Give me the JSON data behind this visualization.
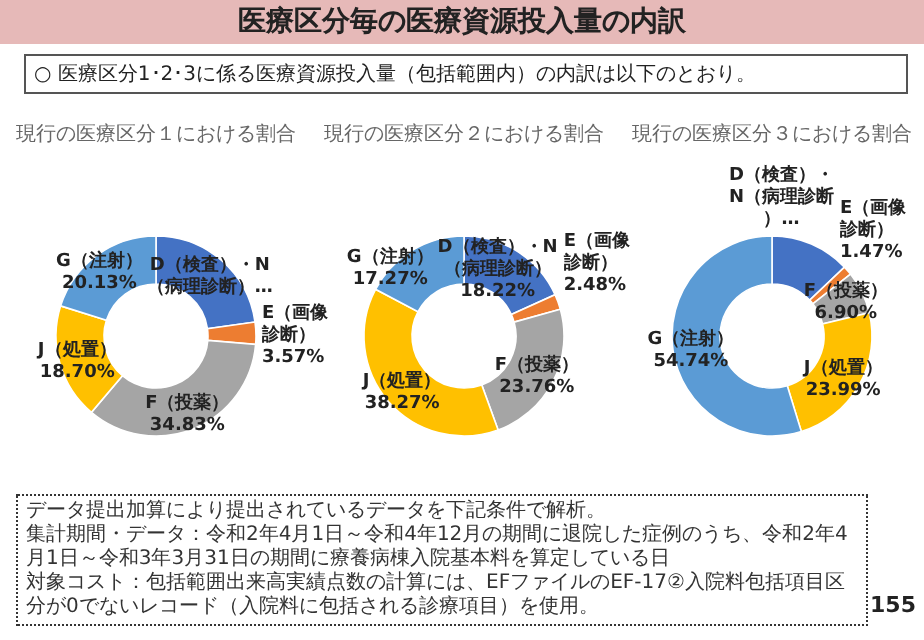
{
  "chart_data": [
    {
      "type": "other",
      "title": "医療区分毎の医療資源投入量の内訳",
      "subtitle": "○ 医療区分1･2･3に係る医療資源投入量（包括範囲内）の内訳は以下のとおり。",
      "annotations": [
        "データ提出加算により提出されているデータを下記条件で解析。",
        "集計期間・データ：令和2年4月1日～令和4年12月の期間に退院した症例のうち、令和2年4月1日～令和3年3月31日の期間に療養病棟入院基本料を算定している日",
        "対象コスト：包括範囲出来高実績点数の計算には、EFファイルのEF-17②入院料包括項目区分が0でないレコード（入院料に包括される診療項目）を使用。",
        "155"
      ]
    },
    {
      "type": "donut",
      "title": "現行の医療区分１における割合",
      "categories": [
        "D（検査）・N（病理診断）…",
        "E（画像診断）",
        "F（投薬）",
        "J（処置）",
        "G（注射）"
      ],
      "values": [
        22.77,
        3.57,
        34.83,
        18.7,
        20.13
      ],
      "value_labels": [
        null,
        "3.57%",
        "34.83%",
        "18.70%",
        "20.13%"
      ],
      "colors": [
        "#4472c4",
        "#ed7d31",
        "#a5a5a5",
        "#ffc000",
        "#5b9bd5"
      ]
    },
    {
      "type": "donut",
      "title": "現行の医療区分２における割合",
      "categories": [
        "D（検査）・N（病理診断）",
        "E（画像診断）",
        "F（投薬）",
        "J（処置）",
        "G（注射）"
      ],
      "values": [
        18.22,
        2.48,
        23.76,
        38.27,
        17.27
      ],
      "value_labels": [
        "18.22%",
        "2.48%",
        "23.76%",
        "38.27%",
        "17.27%"
      ],
      "colors": [
        "#4472c4",
        "#ed7d31",
        "#a5a5a5",
        "#ffc000",
        "#5b9bd5"
      ]
    },
    {
      "type": "donut",
      "title": "現行の医療区分３における割合",
      "categories": [
        "D（検査）・N（病理診断）…",
        "E（画像診断）",
        "F（投薬）",
        "J（処置）",
        "G（注射）"
      ],
      "values": [
        12.9,
        1.47,
        6.9,
        23.99,
        54.74
      ],
      "value_labels": [
        null,
        "1.47%",
        "6.90%",
        "23.99%",
        "54.74%"
      ],
      "colors": [
        "#4472c4",
        "#ed7d31",
        "#a5a5a5",
        "#ffc000",
        "#5b9bd5"
      ]
    }
  ]
}
